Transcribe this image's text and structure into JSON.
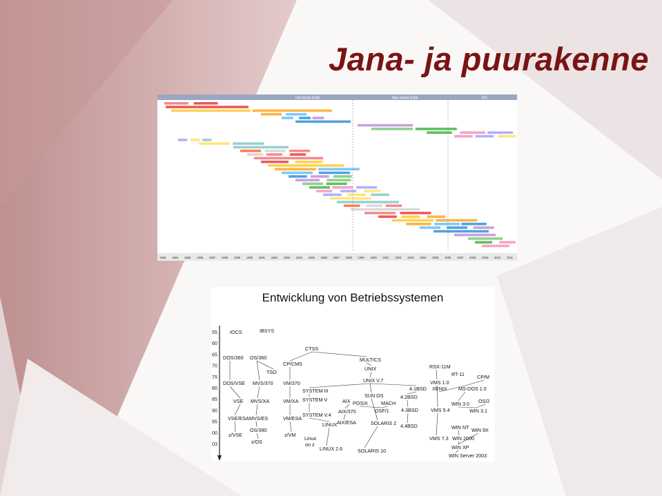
{
  "slide": {
    "title": "Jana- ja puurakenne",
    "colors": {
      "title": "#7a1414",
      "background_band": "#c99a9a"
    }
  },
  "timeline_figure": {
    "header_left": "Old World ROM",
    "header_mid": "New World ROM",
    "header_right": "EFI",
    "years": [
      "1983",
      "1984",
      "1985",
      "1986",
      "1987",
      "1988",
      "1989",
      "1990",
      "1991",
      "1992",
      "1993",
      "1994",
      "1995",
      "1996",
      "1997",
      "1998",
      "1999",
      "2000",
      "2001",
      "2002",
      "2003",
      "2004",
      "2005",
      "2006",
      "2007",
      "2008",
      "2009",
      "2010",
      "2011"
    ]
  },
  "os_figure": {
    "heading": "Entwicklung von Betriebssystemen",
    "years": [
      "55",
      "60",
      "65",
      "70",
      "75",
      "80",
      "85",
      "90",
      "95",
      "00",
      "03"
    ],
    "nodes": [
      "IOCS",
      "IBSYS",
      "DOS/360",
      "OS/360",
      "CTSS",
      "MULTICS",
      "TSO",
      "CP/CMS",
      "UNIX",
      "RSX-11M",
      "RT-11",
      "CP/M",
      "DOS/VSE",
      "MVS/370",
      "VM/370",
      "UNIX V.7",
      "VMS 1.0",
      "MS-DOS 1.0",
      "SYSTEM III",
      "4.1BSD",
      "XENIX",
      "SUN OS",
      "VSE",
      "MVS/XA",
      "VM/XA",
      "SYSTEM V",
      "AIX",
      "POSIX",
      "4.2BSD",
      "MACH",
      "WIN 3.0",
      "OS/2",
      "AIX/370",
      "OSF/1",
      "4.3BSD",
      "VMS 5.4",
      "WIN 3.1",
      "VSE/ESA",
      "MVS/ES",
      "VM/ESA",
      "SYSTEM V.4",
      "LINUX",
      "AIX/ESA",
      "SOLARIS 2",
      "4.4BSD",
      "WIN NT",
      "WIN 9X",
      "OS/390",
      "z/VSE",
      "z/VM",
      "Linux",
      "on z",
      "VMS 7.3",
      "WIN 2000",
      "z/OS",
      "LINUX 2.6",
      "SOLARIS 10",
      "WIN XP",
      "WIN Server 2003"
    ]
  }
}
